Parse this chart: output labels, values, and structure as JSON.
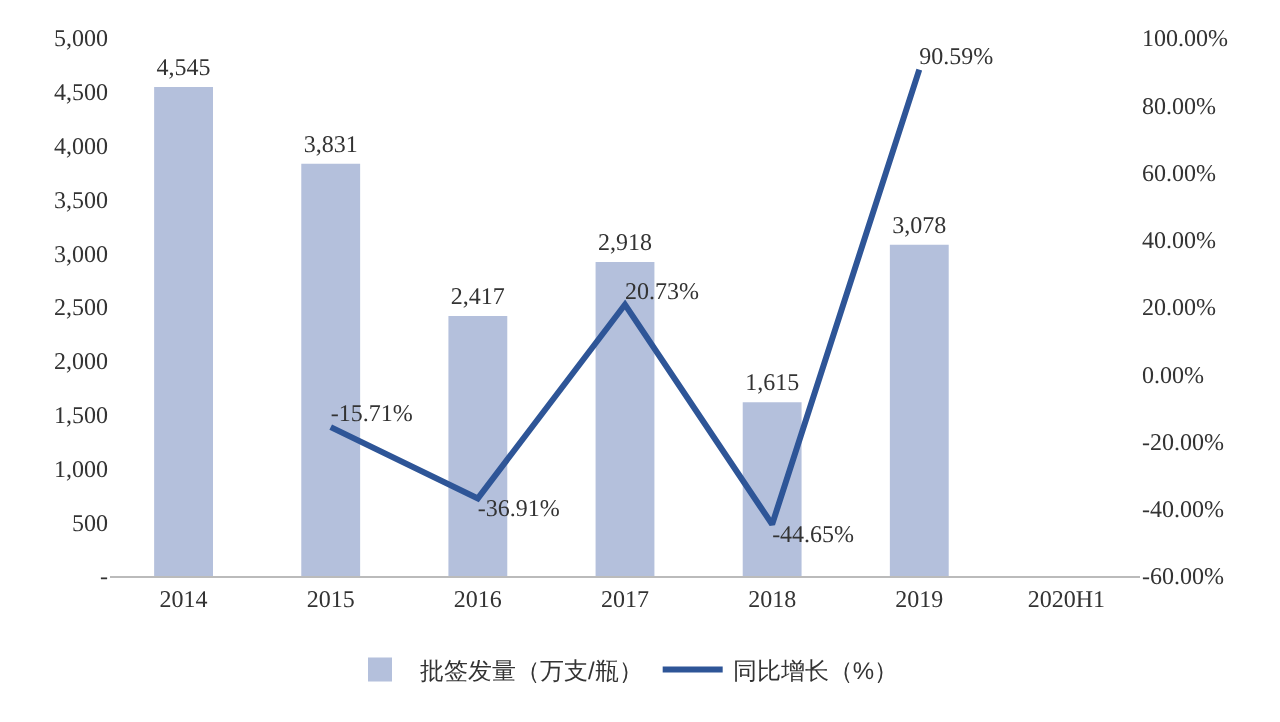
{
  "chart_data": {
    "type": "bar",
    "categories": [
      "2014",
      "2015",
      "2016",
      "2017",
      "2018",
      "2019",
      "2020H1"
    ],
    "series": [
      {
        "name": "批签发量（万支/瓶）",
        "color": "#b4c0dc",
        "values": [
          4545,
          3831,
          2417,
          2918,
          1615,
          3078,
          null
        ],
        "value_labels": [
          "4,545",
          "3,831",
          "2,417",
          "2,918",
          "1,615",
          "3,078",
          null
        ]
      },
      {
        "name": "同比增长（%）",
        "type": "line",
        "axis": "y2",
        "color": "#2e5597",
        "values": [
          null,
          -15.71,
          -36.91,
          20.73,
          -44.65,
          90.59,
          null
        ],
        "value_labels": [
          null,
          "-15.71%",
          "-36.91%",
          "20.73%",
          "-44.65%",
          "90.59%",
          null
        ]
      }
    ],
    "ylim": [
      0,
      5000
    ],
    "yticks": [
      {
        "value": 0,
        "label": "-"
      },
      500,
      {
        "value": 1000,
        "label": "1,000"
      },
      {
        "value": 1500,
        "label": "1,500"
      },
      {
        "value": 2000,
        "label": "2,000"
      },
      {
        "value": 2500,
        "label": "2,500"
      },
      {
        "value": 3000,
        "label": "3,000"
      },
      {
        "value": 3500,
        "label": "3,500"
      },
      {
        "value": 4000,
        "label": "4,000"
      },
      {
        "value": 4500,
        "label": "4,500"
      },
      {
        "value": 5000,
        "label": "5,000"
      }
    ],
    "y2lim": [
      -60,
      100
    ],
    "y2ticks": [
      {
        "value": -60,
        "label": "-60.00%"
      },
      {
        "value": -40,
        "label": "-40.00%"
      },
      {
        "value": -20,
        "label": "-20.00%"
      },
      {
        "value": 0,
        "label": "0.00%"
      },
      {
        "value": 20,
        "label": "20.00%"
      },
      {
        "value": 40,
        "label": "40.00%"
      },
      {
        "value": 60,
        "label": "60.00%"
      },
      {
        "value": 80,
        "label": "80.00%"
      },
      {
        "value": 100,
        "label": "100.00%"
      }
    ],
    "legend": "bottom",
    "grid": false,
    "marker": "none",
    "line_style": "solid"
  }
}
